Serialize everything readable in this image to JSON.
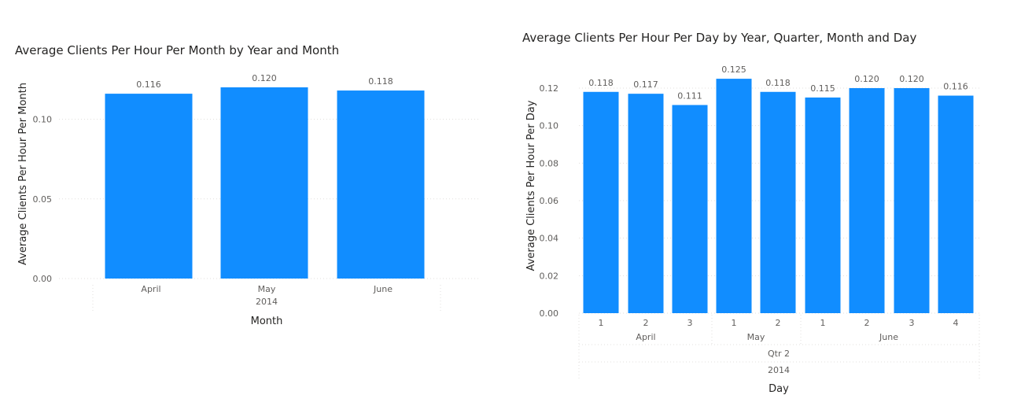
{
  "colors": {
    "bar": "#118dff"
  },
  "chart_data": [
    {
      "type": "bar",
      "title": "Average Clients Per Hour Per Month by Year and Month",
      "xlabel": "Month",
      "ylabel": "Average Clients Per Hour Per Month",
      "ylim": [
        0,
        0.12
      ],
      "yticks": [
        "0.00",
        "0.05",
        "0.10"
      ],
      "categories": [
        "April",
        "May",
        "June"
      ],
      "group_labels": [
        "2014"
      ],
      "values": [
        0.116,
        0.12,
        0.118
      ],
      "data_labels": [
        "0.116",
        "0.120",
        "0.118"
      ],
      "grid": true
    },
    {
      "type": "bar",
      "title": "Average Clients Per Hour Per Day by Year, Quarter, Month and Day",
      "xlabel": "Day",
      "ylabel": "Average Clients Per Hour Per Day",
      "ylim": [
        0,
        0.125
      ],
      "yticks": [
        "0.00",
        "0.02",
        "0.04",
        "0.06",
        "0.08",
        "0.10",
        "0.12"
      ],
      "categories": [
        "1",
        "2",
        "3",
        "1",
        "2",
        "1",
        "2",
        "3",
        "4"
      ],
      "months": [
        "April",
        "May",
        "June"
      ],
      "quarter": "Qtr 2",
      "year": "2014",
      "values": [
        0.118,
        0.117,
        0.111,
        0.125,
        0.118,
        0.115,
        0.12,
        0.12,
        0.116
      ],
      "data_labels": [
        "0.118",
        "0.117",
        "0.111",
        "0.125",
        "0.118",
        "0.115",
        "0.120",
        "0.120",
        "0.116"
      ],
      "grid": true
    }
  ]
}
